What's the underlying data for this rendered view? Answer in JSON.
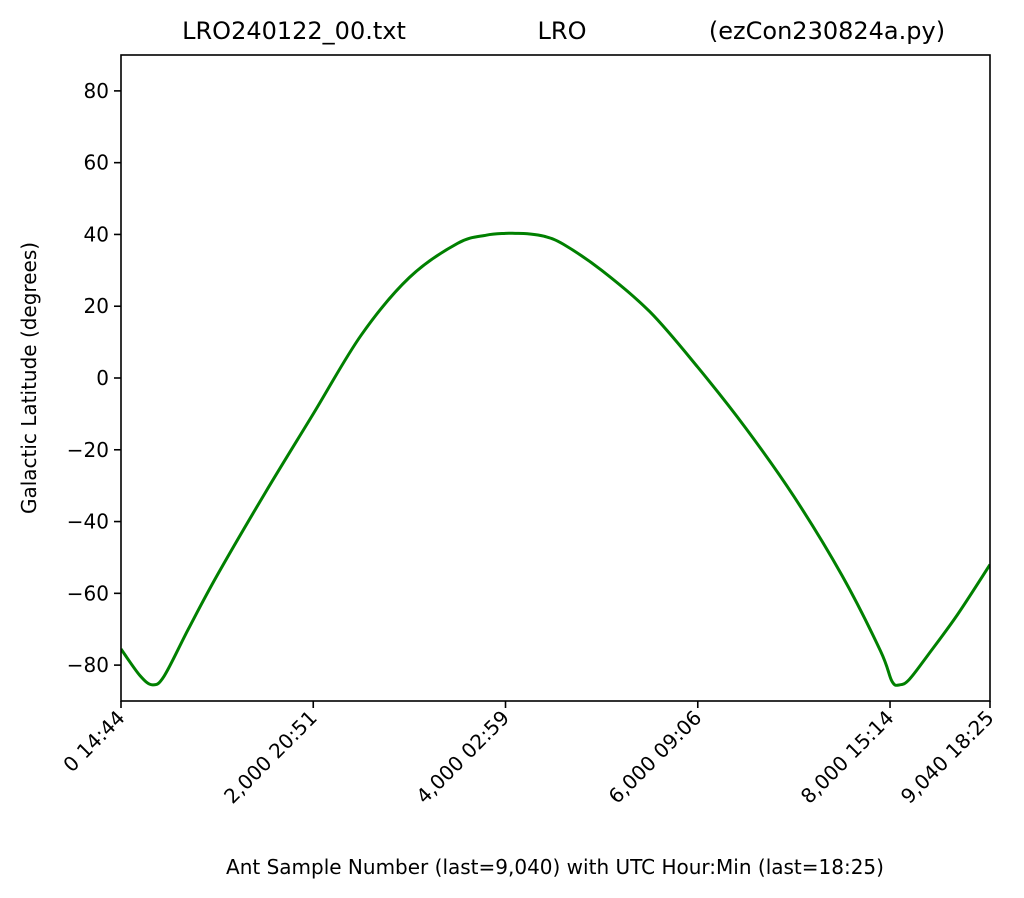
{
  "chart_data": {
    "type": "line",
    "title_left": "LRO240122_00.txt",
    "title_center": "LRO",
    "title_right": "(ezCon230824a.py)",
    "xlabel": "Ant Sample Number (last=9,040) with UTC Hour:Min (last=18:25)",
    "ylabel": "Galactic Latitude (degrees)",
    "xlim": [
      0,
      9040
    ],
    "ylim": [
      -90,
      90
    ],
    "yticks": [
      -80,
      -60,
      -40,
      -20,
      0,
      20,
      40,
      60,
      80
    ],
    "ytick_labels": [
      "−80",
      "−60",
      "−40",
      "−20",
      "0",
      "20",
      "40",
      "60",
      "80"
    ],
    "xticks": [
      0,
      2000,
      4000,
      6000,
      8000,
      9040
    ],
    "xtick_labels": [
      "0  14:44",
      "2,000  20:51",
      "4,000  02:59",
      "6,000  09:06",
      "8,000  15:14",
      "9,040  18:25"
    ],
    "grid": false,
    "series": [
      {
        "color": "#008000",
        "x": [
          0,
          200,
          330,
          450,
          700,
          1000,
          1500,
          2000,
          2500,
          3000,
          3500,
          3800,
          4000,
          4100,
          4230,
          4400,
          4600,
          5000,
          5500,
          6000,
          6500,
          7000,
          7500,
          7900,
          8020,
          8100,
          8200,
          8400,
          8700,
          9040
        ],
        "y": [
          -75.5,
          -83,
          -85.5,
          -83,
          -70,
          -55,
          -32,
          -10,
          12,
          28,
          37.5,
          39.8,
          40.3,
          40.3,
          40.2,
          39.5,
          37.3,
          30,
          18.5,
          3,
          -14,
          -33,
          -55,
          -76,
          -84.5,
          -85.5,
          -84,
          -77,
          -66,
          -52
        ]
      }
    ]
  }
}
